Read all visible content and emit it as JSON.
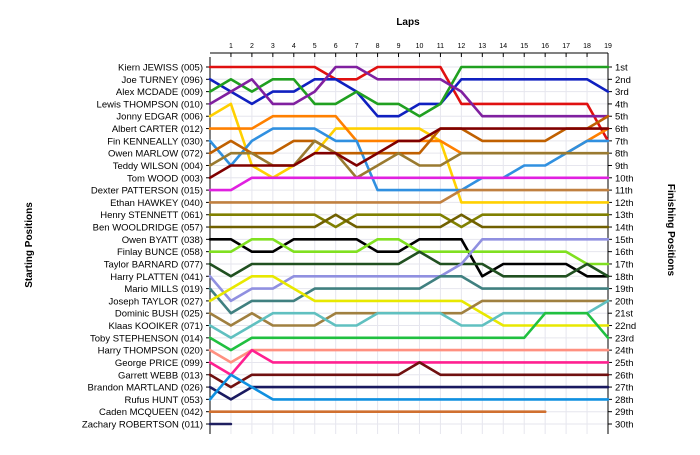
{
  "chart_data": {
    "type": "line",
    "xlabel": "Laps",
    "ylabel_left": "Starting Positions",
    "ylabel_right": "Finishing Positions",
    "laps": [
      1,
      2,
      3,
      4,
      5,
      6,
      7,
      8,
      9,
      10,
      11,
      12,
      13,
      14,
      15,
      16,
      17,
      18,
      19
    ],
    "xlim": [
      0,
      19
    ],
    "ylim": [
      1,
      30
    ],
    "grid": true,
    "starting_labels": [
      "Kiern JEWISS (005)",
      "Joe TURNEY (096)",
      "Alex MCDADE (009)",
      "Lewis THOMPSON (010)",
      "Jonny EDGAR (006)",
      "Albert CARTER (012)",
      "Fin KENNEALLY (030)",
      "Owen MARLOW (072)",
      "Teddy WILSON (004)",
      "Tom WOOD (003)",
      "Dexter PATTERSON (015)",
      "Ethan HAWKEY (040)",
      "Henry STENNETT (061)",
      "Ben WOOLDRIDGE (057)",
      "Owen BYATT (038)",
      "Finlay BUNCE (058)",
      "Taylor BARNARD (077)",
      "Harry PLATTEN (041)",
      "Mario MILLS (019)",
      "Joseph TAYLOR (027)",
      "Dominic BUSH (025)",
      "Klaas KOOIKER (071)",
      "Toby STEPHENSON (014)",
      "Harry THOMPSON (020)",
      "George PRICE (099)",
      "Garrett WEBB (013)",
      "Brandon MARTLAND (026)",
      "Rufus HUNT (053)",
      "Caden MCQUEEN (042)",
      "Zachary ROBERTSON (011)"
    ],
    "finishing_labels": [
      "1st",
      "2nd",
      "3rd",
      "4th",
      "5th",
      "6th",
      "7th",
      "8th",
      "9th",
      "10th",
      "11th",
      "12th",
      "13th",
      "14th",
      "15th",
      "16th",
      "17th",
      "18th",
      "19th",
      "20th",
      "21st",
      "22nd",
      "23rd",
      "24th",
      "25th",
      "26th",
      "27th",
      "28th",
      "29th",
      "30th"
    ],
    "series": [
      {
        "color": "#e01010",
        "positions": [
          1,
          1,
          1,
          1,
          1,
          2,
          2,
          1,
          1,
          1,
          1,
          4,
          4,
          4,
          4,
          4,
          4,
          4,
          7
        ]
      },
      {
        "color": "#1020c0",
        "positions": [
          3,
          4,
          3,
          3,
          2,
          2,
          3,
          5,
          5,
          4,
          4,
          2,
          2,
          2,
          2,
          2,
          2,
          2,
          3
        ]
      },
      {
        "color": "#20a020",
        "positions": [
          2,
          3,
          2,
          2,
          4,
          4,
          3,
          4,
          4,
          5,
          4,
          1,
          1,
          1,
          1,
          1,
          1,
          1,
          1
        ]
      },
      {
        "color": "#8020a0",
        "positions": [
          3,
          2,
          4,
          4,
          3,
          1,
          1,
          2,
          2,
          2,
          2,
          3,
          5,
          5,
          5,
          5,
          5,
          5,
          5
        ]
      },
      {
        "color": "#ffd000",
        "positions": [
          4,
          9,
          10,
          9,
          8,
          6,
          6,
          6,
          6,
          6,
          7,
          12,
          12,
          12,
          12,
          12,
          12,
          12,
          12
        ]
      },
      {
        "color": "#ff8000",
        "positions": [
          6,
          6,
          5,
          5,
          5,
          5,
          7,
          7,
          7,
          7,
          7,
          8,
          8,
          8,
          8,
          8,
          8,
          7,
          6
        ]
      },
      {
        "color": "#3090e0",
        "positions": [
          9,
          7,
          6,
          6,
          6,
          7,
          7,
          11,
          11,
          11,
          11,
          11,
          10,
          10,
          9,
          9,
          8,
          7,
          7
        ]
      },
      {
        "color": "#c06000",
        "positions": [
          7,
          8,
          8,
          7,
          7,
          8,
          8,
          8,
          8,
          8,
          6,
          6,
          7,
          7,
          7,
          7,
          6,
          6,
          5
        ]
      },
      {
        "color": "#9a7a30",
        "positions": [
          8,
          8,
          9,
          9,
          7,
          8,
          10,
          9,
          8,
          9,
          9,
          8,
          8,
          8,
          8,
          8,
          8,
          8,
          8
        ]
      },
      {
        "color": "#800000",
        "positions": [
          9,
          9,
          9,
          9,
          8,
          8,
          9,
          8,
          7,
          7,
          6,
          6,
          6,
          6,
          6,
          6,
          6,
          6,
          6
        ]
      },
      {
        "color": "#e020e0",
        "positions": [
          11,
          10,
          10,
          10,
          10,
          10,
          10,
          10,
          10,
          10,
          10,
          10,
          10,
          10,
          10,
          10,
          10,
          10,
          10
        ]
      },
      {
        "color": "#c08040",
        "positions": [
          12,
          12,
          12,
          12,
          12,
          12,
          12,
          12,
          12,
          12,
          12,
          11,
          11,
          11,
          11,
          11,
          11,
          11,
          11
        ]
      },
      {
        "color": "#808000",
        "positions": [
          13,
          13,
          13,
          13,
          13,
          14,
          13,
          13,
          13,
          13,
          13,
          14,
          13,
          13,
          13,
          13,
          13,
          13,
          13
        ]
      },
      {
        "color": "#706000",
        "positions": [
          14,
          14,
          14,
          14,
          14,
          13,
          14,
          14,
          14,
          14,
          14,
          13,
          14,
          14,
          14,
          14,
          14,
          14,
          14
        ]
      },
      {
        "color": "#000000",
        "positions": [
          15,
          16,
          16,
          15,
          15,
          15,
          15,
          16,
          16,
          15,
          15,
          15,
          18,
          17,
          17,
          17,
          17,
          18,
          18
        ]
      },
      {
        "color": "#80e020",
        "positions": [
          16,
          15,
          15,
          16,
          16,
          16,
          16,
          15,
          15,
          16,
          16,
          16,
          16,
          16,
          16,
          16,
          16,
          17,
          17
        ]
      },
      {
        "color": "#205020",
        "positions": [
          18,
          17,
          17,
          17,
          17,
          17,
          17,
          17,
          17,
          16,
          17,
          17,
          17,
          18,
          18,
          18,
          18,
          17,
          18
        ]
      },
      {
        "color": "#9090e0",
        "positions": [
          20,
          19,
          19,
          18,
          18,
          18,
          18,
          18,
          18,
          18,
          18,
          17,
          15,
          15,
          15,
          15,
          15,
          15,
          15
        ]
      },
      {
        "color": "#408080",
        "positions": [
          21,
          20,
          20,
          20,
          19,
          19,
          19,
          19,
          19,
          19,
          18,
          18,
          19,
          19,
          19,
          19,
          19,
          19,
          19
        ]
      },
      {
        "color": "#e8e800",
        "positions": [
          19,
          18,
          18,
          19,
          20,
          20,
          20,
          20,
          20,
          20,
          20,
          20,
          21,
          22,
          22,
          22,
          22,
          22,
          22
        ]
      },
      {
        "color": "#a08040",
        "positions": [
          22,
          21,
          22,
          22,
          22,
          21,
          21,
          21,
          21,
          21,
          21,
          21,
          20,
          20,
          20,
          20,
          20,
          20,
          20
        ]
      },
      {
        "color": "#60c0c0",
        "positions": [
          23,
          22,
          21,
          21,
          21,
          22,
          22,
          21,
          21,
          21,
          21,
          22,
          22,
          21,
          21,
          21,
          21,
          21,
          20
        ]
      },
      {
        "color": "#20c040",
        "positions": [
          24,
          23,
          23,
          23,
          23,
          23,
          23,
          23,
          23,
          23,
          23,
          23,
          23,
          23,
          23,
          21,
          21,
          21,
          23
        ]
      },
      {
        "color": "#ff9080",
        "positions": [
          25,
          24,
          24,
          24,
          24,
          24,
          24,
          24,
          24,
          24,
          24,
          24,
          24,
          24,
          24,
          24,
          24,
          24,
          24
        ]
      },
      {
        "color": "#ff2090",
        "positions": [
          26,
          24,
          25,
          25,
          25,
          25,
          25,
          25,
          25,
          25,
          25,
          25,
          25,
          25,
          25,
          25,
          25,
          25,
          25
        ]
      },
      {
        "color": "#701010",
        "positions": [
          27,
          26,
          26,
          26,
          26,
          26,
          26,
          26,
          26,
          25,
          26,
          26,
          26,
          26,
          26,
          26,
          26,
          26,
          26
        ]
      },
      {
        "color": "#1a1a60",
        "positions": [
          28,
          27,
          27,
          27,
          27,
          27,
          27,
          27,
          27,
          27,
          27,
          27,
          27,
          27,
          27,
          27,
          27,
          27,
          27
        ]
      },
      {
        "color": "#1090e0",
        "positions": [
          26,
          27,
          28,
          28,
          28,
          28,
          28,
          28,
          28,
          28,
          28,
          28,
          28,
          28,
          28,
          28,
          28,
          28,
          28
        ]
      },
      {
        "color": "#d07030",
        "positions": [
          29,
          29,
          29,
          29,
          29,
          29,
          29,
          29,
          29,
          29,
          29,
          29,
          29,
          29,
          29,
          29
        ]
      },
      {
        "color": "#202060",
        "positions": [
          30
        ]
      }
    ]
  }
}
